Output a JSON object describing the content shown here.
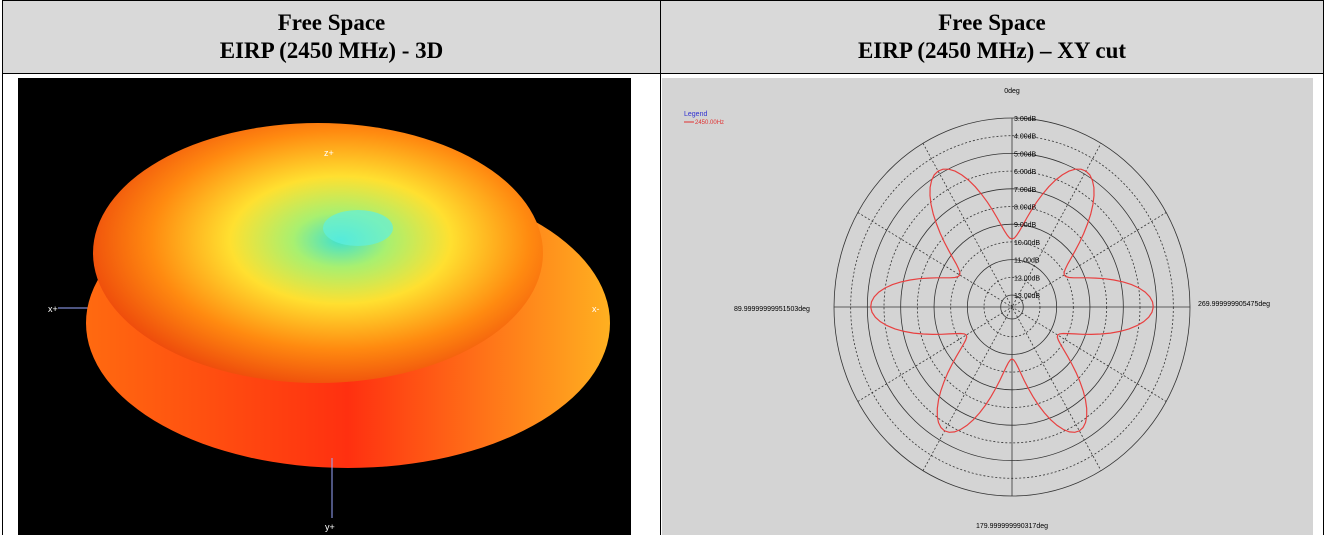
{
  "left": {
    "title": [
      "Free Space",
      "EIRP (2450 MHz) - 3D"
    ],
    "axes": {
      "top": "z+",
      "left": "x+",
      "right": "x-",
      "bottom": "y+"
    }
  },
  "right": {
    "title": [
      "Free Space",
      "EIRP (2450 MHz) – XY cut"
    ],
    "legend": {
      "title": "Legend",
      "entry": "2450.00Hz"
    },
    "angles": {
      "top": "0deg",
      "left": "89.99999999951503deg",
      "right": "269.999999905475deg",
      "bottom": "179.999999990317deg"
    },
    "rings": [
      "3.00dB",
      "4.00dB",
      "5.00dB",
      "6.00dB",
      "7.00dB",
      "8.00dB",
      "9.00dB",
      "10.00dB",
      "11.00dB",
      "12.00dB",
      "13.00dB"
    ]
  }
}
